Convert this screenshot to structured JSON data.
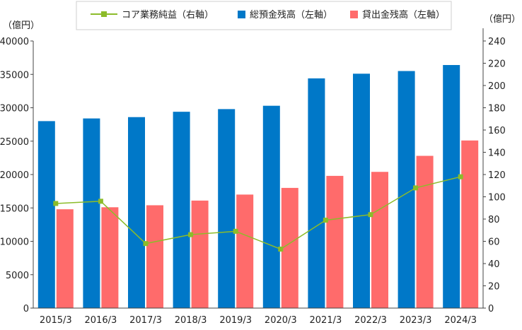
{
  "chart_data": {
    "type": "bar",
    "categories": [
      "2015/3",
      "2016/3",
      "2017/3",
      "2018/3",
      "2019/3",
      "2020/3",
      "2021/3",
      "2022/3",
      "2023/3",
      "2024/3"
    ],
    "series": [
      {
        "name": "総預金残高（左軸）",
        "type": "bar",
        "axis": "left",
        "color": "#0078c8",
        "values": [
          28000,
          28400,
          28600,
          29400,
          29800,
          30300,
          34400,
          35100,
          35500,
          36400
        ]
      },
      {
        "name": "貸出金残高（左軸）",
        "type": "bar",
        "axis": "left",
        "color": "#ff6b6b",
        "values": [
          14800,
          15100,
          15400,
          16100,
          17000,
          18000,
          19800,
          20400,
          22800,
          25100
        ]
      },
      {
        "name": "コア業務純益（右軸）",
        "type": "line",
        "axis": "right",
        "color": "#8cbc2a",
        "values": [
          94,
          96,
          58,
          66,
          69,
          53,
          79,
          84,
          108,
          118
        ]
      }
    ],
    "left_axis": {
      "unit": "（億円）",
      "ylim": [
        0,
        40000
      ],
      "ticks": [
        0,
        5000,
        10000,
        15000,
        20000,
        25000,
        30000,
        35000,
        40000
      ]
    },
    "right_axis": {
      "unit": "（億円）",
      "ylim": [
        0,
        240
      ],
      "ticks": [
        0,
        20,
        40,
        60,
        80,
        100,
        120,
        140,
        160,
        180,
        200,
        220,
        240
      ]
    },
    "legend_position": "top-center",
    "grid": false
  }
}
